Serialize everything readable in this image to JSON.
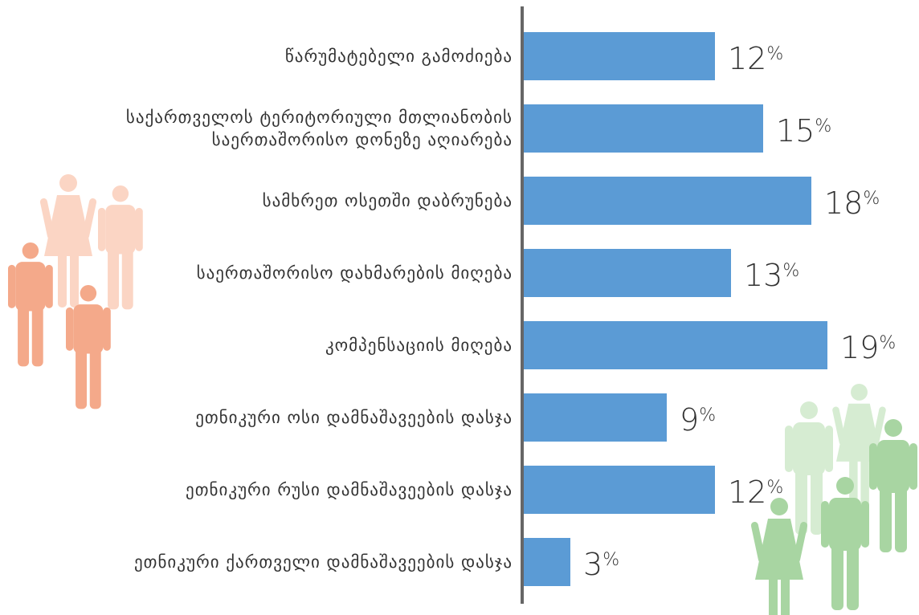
{
  "chart_data": {
    "type": "bar",
    "orientation": "horizontal",
    "categories": [
      "წარუმატებელი გამოძიება",
      "საქართველოს ტერიტორიული მთლიანობის საერთაშორისო დონეზე აღიარება",
      "სამხრეთ ოსეთში დაბრუნება",
      "საერთაშორისო დახმარების მიღება",
      "კომპენსაციის მიღება",
      "ეთნიკური ოსი დამნაშავეების დასჯა",
      "ეთნიკური რუსი დამნაშავეების დასჯა",
      "ეთნიკური ქართველი დამნაშავეების დასჯა"
    ],
    "category_lines": [
      [
        "წარუმატებელი გამოძიება"
      ],
      [
        "საქართველოს ტერიტორიული მთლიანობის",
        "საერთაშორისო დონეზე აღიარება"
      ],
      [
        "სამხრეთ ოსეთში დაბრუნება"
      ],
      [
        "საერთაშორისო დახმარების მიღება"
      ],
      [
        "კომპენსაციის მიღება"
      ],
      [
        "ეთნიკური ოსი დამნაშავეების დასჯა"
      ],
      [
        "ეთნიკური რუსი დამნაშავეების დასჯა"
      ],
      [
        "ეთნიკური ქართველი დამნაშავეების დასჯა"
      ]
    ],
    "values": [
      12,
      15,
      18,
      13,
      19,
      9,
      12,
      3
    ],
    "value_suffix": "%",
    "xlim": [
      0,
      20
    ],
    "grid": false,
    "bar_color": "#5b9bd5",
    "axis_color": "#666666"
  },
  "decorations": {
    "left_people_color": "#f4a98a",
    "left_people_light_color": "#fbd5c4",
    "right_people_color": "#a8d5a2",
    "right_people_light_color": "#d6ecd2"
  }
}
